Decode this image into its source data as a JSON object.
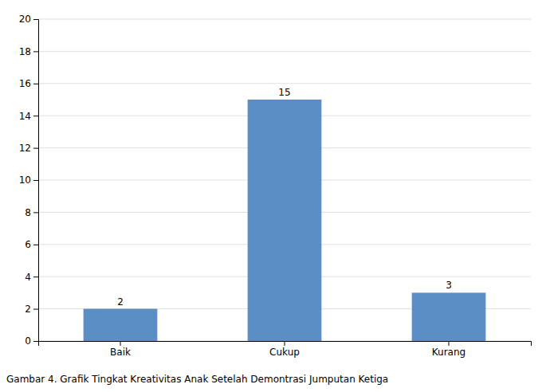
{
  "chart_data": {
    "type": "bar",
    "caption": "Gambar 4. Grafik Tingkat Kreativitas Anak Setelah Demontrasi Jumputan Ketiga",
    "categories": [
      "Baik",
      "Cukup",
      "Kurang"
    ],
    "values": [
      2,
      15,
      3
    ],
    "color": "#5b8ec4",
    "ylim": [
      0,
      20
    ],
    "yticks": [
      0,
      2,
      4,
      6,
      8,
      10,
      12,
      14,
      16,
      18,
      20
    ],
    "grid": true,
    "data_labels": true
  }
}
